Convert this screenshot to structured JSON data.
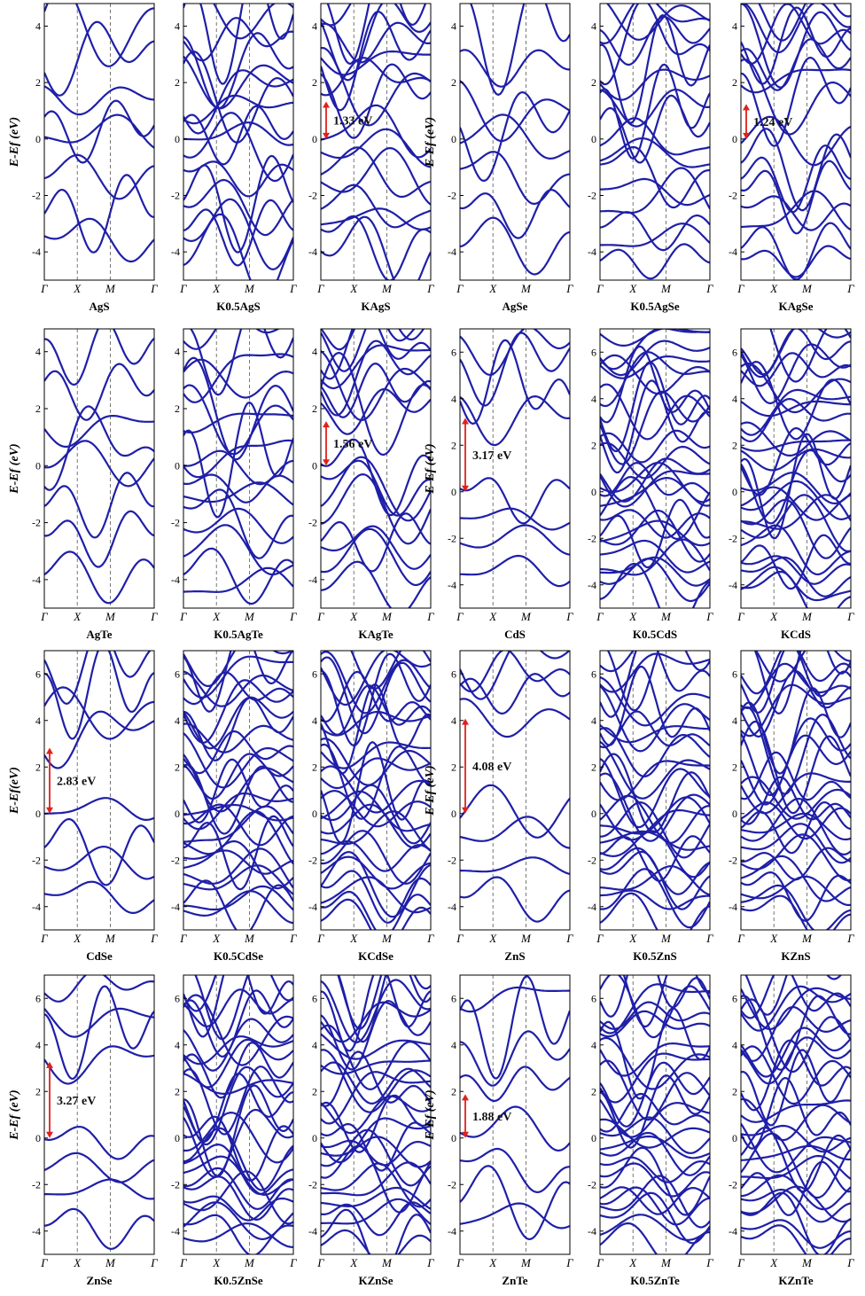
{
  "colors": {
    "band": "#1f1fa8",
    "arrow": "#e0201b",
    "axis": "#000000",
    "dash": "#555555"
  },
  "chart_data": [
    {
      "type": "line",
      "title": "AgS",
      "ylabel": "E-Ef (eV)",
      "ylim": [
        -5,
        4.8
      ],
      "yticks": [
        "-4",
        "-2",
        "0",
        "2",
        "4"
      ],
      "xticks": [
        "Γ",
        "X",
        "M",
        "Γ"
      ],
      "gap": null,
      "complexity": 1,
      "seed": 11
    },
    {
      "type": "line",
      "title": "K0.5AgS",
      "ylim": [
        -5,
        4.8
      ],
      "yticks": [
        "-4",
        "-2",
        "0",
        "2",
        "4"
      ],
      "xticks": [
        "Γ",
        "X",
        "M",
        "Γ"
      ],
      "gap": null,
      "complexity": 2,
      "seed": 12
    },
    {
      "type": "line",
      "title": "KAgS",
      "ylim": [
        -5,
        4.8
      ],
      "yticks": [
        "-4",
        "-2",
        "0",
        "2",
        "4"
      ],
      "xticks": [
        "Γ",
        "X",
        "M",
        "Γ"
      ],
      "gap": 1.33,
      "gap_label": "1.33 eV",
      "complexity": 2,
      "seed": 13
    },
    {
      "type": "line",
      "title": "AgSe",
      "ylabel": "E-Ef (eV)",
      "ylim": [
        -5,
        4.8
      ],
      "yticks": [
        "-4",
        "-2",
        "0",
        "2",
        "4"
      ],
      "xticks": [
        "Γ",
        "X",
        "M",
        "Γ"
      ],
      "gap": null,
      "complexity": 1,
      "seed": 14
    },
    {
      "type": "line",
      "title": "K0.5AgSe",
      "ylim": [
        -5,
        4.8
      ],
      "yticks": [
        "-4",
        "-2",
        "0",
        "2",
        "4"
      ],
      "xticks": [
        "Γ",
        "X",
        "M",
        "Γ"
      ],
      "gap": null,
      "complexity": 2,
      "seed": 15
    },
    {
      "type": "line",
      "title": "KAgSe",
      "ylim": [
        -5,
        4.8
      ],
      "yticks": [
        "-4",
        "-2",
        "0",
        "2",
        "4"
      ],
      "xticks": [
        "Γ",
        "X",
        "M",
        "Γ"
      ],
      "gap": 1.24,
      "gap_label": "1.24 eV",
      "complexity": 2,
      "seed": 16
    },
    {
      "type": "line",
      "title": "AgTe",
      "ylabel": "E-Ef (eV)",
      "ylim": [
        -5,
        4.8
      ],
      "yticks": [
        "-4",
        "-2",
        "0",
        "2",
        "4"
      ],
      "xticks": [
        "Γ",
        "X",
        "M",
        "Γ"
      ],
      "gap": null,
      "complexity": 1,
      "seed": 21
    },
    {
      "type": "line",
      "title": "K0.5AgTe",
      "ylim": [
        -5,
        4.8
      ],
      "yticks": [
        "-4",
        "-2",
        "0",
        "2",
        "4"
      ],
      "xticks": [
        "Γ",
        "X",
        "M",
        "Γ"
      ],
      "gap": null,
      "complexity": 2,
      "seed": 22
    },
    {
      "type": "line",
      "title": "KAgTe",
      "ylim": [
        -5,
        4.8
      ],
      "yticks": [
        "-4",
        "-2",
        "0",
        "2",
        "4"
      ],
      "xticks": [
        "Γ",
        "X",
        "M",
        "Γ"
      ],
      "gap": 1.56,
      "gap_label": "1.56 eV",
      "complexity": 2,
      "seed": 23
    },
    {
      "type": "line",
      "title": "CdS",
      "ylabel": "E-Ef (eV)",
      "ylim": [
        -5,
        7
      ],
      "yticks": [
        "-4",
        "-2",
        "0",
        "2",
        "4",
        "6"
      ],
      "xticks": [
        "Γ",
        "X",
        "M",
        "Γ"
      ],
      "gap": 3.17,
      "gap_label": "3.17 eV",
      "complexity": 1,
      "seed": 24
    },
    {
      "type": "line",
      "title": "K0.5CdS",
      "ylim": [
        -5,
        7
      ],
      "yticks": [
        "-4",
        "-2",
        "0",
        "2",
        "4",
        "6"
      ],
      "xticks": [
        "Γ",
        "X",
        "M",
        "Γ"
      ],
      "gap": null,
      "complexity": 3,
      "seed": 25
    },
    {
      "type": "line",
      "title": "KCdS",
      "ylim": [
        -5,
        7
      ],
      "yticks": [
        "-4",
        "-2",
        "0",
        "2",
        "4",
        "6"
      ],
      "xticks": [
        "Γ",
        "X",
        "M",
        "Γ"
      ],
      "gap": null,
      "complexity": 3,
      "seed": 26
    },
    {
      "type": "line",
      "title": "CdSe",
      "ylabel": "E-Ef(eV)",
      "ylim": [
        -5,
        7
      ],
      "yticks": [
        "-4",
        "-2",
        "0",
        "2",
        "4",
        "6"
      ],
      "xticks": [
        "Γ",
        "X",
        "M",
        "Γ"
      ],
      "gap": 2.83,
      "gap_label": "2.83 eV",
      "complexity": 1,
      "seed": 31
    },
    {
      "type": "line",
      "title": "K0.5CdSe",
      "ylim": [
        -5,
        7
      ],
      "yticks": [
        "-4",
        "-2",
        "0",
        "2",
        "4",
        "6"
      ],
      "xticks": [
        "Γ",
        "X",
        "M",
        "Γ"
      ],
      "gap": null,
      "complexity": 3,
      "seed": 32
    },
    {
      "type": "line",
      "title": "KCdSe",
      "ylim": [
        -5,
        7
      ],
      "yticks": [
        "-4",
        "-2",
        "0",
        "2",
        "4",
        "6"
      ],
      "xticks": [
        "Γ",
        "X",
        "M",
        "Γ"
      ],
      "gap": null,
      "complexity": 3,
      "seed": 33
    },
    {
      "type": "line",
      "title": "ZnS",
      "ylabel": "E-Ef (eV)",
      "ylim": [
        -5,
        7
      ],
      "yticks": [
        "-4",
        "-2",
        "0",
        "2",
        "4",
        "6"
      ],
      "xticks": [
        "Γ",
        "X",
        "M",
        "Γ"
      ],
      "gap": 4.08,
      "gap_label": "4.08 eV",
      "complexity": 1,
      "seed": 34
    },
    {
      "type": "line",
      "title": "K0.5ZnS",
      "ylim": [
        -5,
        7
      ],
      "yticks": [
        "-4",
        "-2",
        "0",
        "2",
        "4",
        "6"
      ],
      "xticks": [
        "Γ",
        "X",
        "M",
        "Γ"
      ],
      "gap": null,
      "complexity": 3,
      "seed": 35
    },
    {
      "type": "line",
      "title": "KZnS",
      "ylim": [
        -5,
        7
      ],
      "yticks": [
        "-4",
        "-2",
        "0",
        "2",
        "4",
        "6"
      ],
      "xticks": [
        "Γ",
        "X",
        "M",
        "Γ"
      ],
      "gap": null,
      "complexity": 3,
      "seed": 36
    },
    {
      "type": "line",
      "title": "ZnSe",
      "ylabel": "E-Ef (eV)",
      "ylim": [
        -5,
        7
      ],
      "yticks": [
        "-4",
        "-2",
        "0",
        "2",
        "4",
        "6"
      ],
      "xticks": [
        "Γ",
        "X",
        "M",
        "Γ"
      ],
      "gap": 3.27,
      "gap_label": "3.27 eV",
      "complexity": 1,
      "seed": 41
    },
    {
      "type": "line",
      "title": "K0.5ZnSe",
      "ylim": [
        -5,
        7
      ],
      "yticks": [
        "-4",
        "-2",
        "0",
        "2",
        "4",
        "6"
      ],
      "xticks": [
        "Γ",
        "X",
        "M",
        "Γ"
      ],
      "gap": null,
      "complexity": 3,
      "seed": 42
    },
    {
      "type": "line",
      "title": "KZnSe",
      "ylim": [
        -5,
        7
      ],
      "yticks": [
        "-4",
        "-2",
        "0",
        "2",
        "4",
        "6"
      ],
      "xticks": [
        "Γ",
        "X",
        "M",
        "Γ"
      ],
      "gap": null,
      "complexity": 3,
      "seed": 43
    },
    {
      "type": "line",
      "title": "ZnTe",
      "ylabel": "E-Ef (eV)",
      "ylim": [
        -5,
        7
      ],
      "yticks": [
        "-4",
        "-2",
        "0",
        "2",
        "4",
        "6"
      ],
      "xticks": [
        "Γ",
        "X",
        "M",
        "Γ"
      ],
      "gap": 1.88,
      "gap_label": "1.88 eV",
      "complexity": 1,
      "seed": 44
    },
    {
      "type": "line",
      "title": "K0.5ZnTe",
      "ylim": [
        -5,
        7
      ],
      "yticks": [
        "-4",
        "-2",
        "0",
        "2",
        "4",
        "6"
      ],
      "xticks": [
        "Γ",
        "X",
        "M",
        "Γ"
      ],
      "gap": null,
      "complexity": 3,
      "seed": 45
    },
    {
      "type": "line",
      "title": "KZnTe",
      "ylim": [
        -5,
        7
      ],
      "yticks": [
        "-4",
        "-2",
        "0",
        "2",
        "4",
        "6"
      ],
      "xticks": [
        "Γ",
        "X",
        "M",
        "Γ"
      ],
      "gap": null,
      "complexity": 3,
      "seed": 46
    }
  ]
}
